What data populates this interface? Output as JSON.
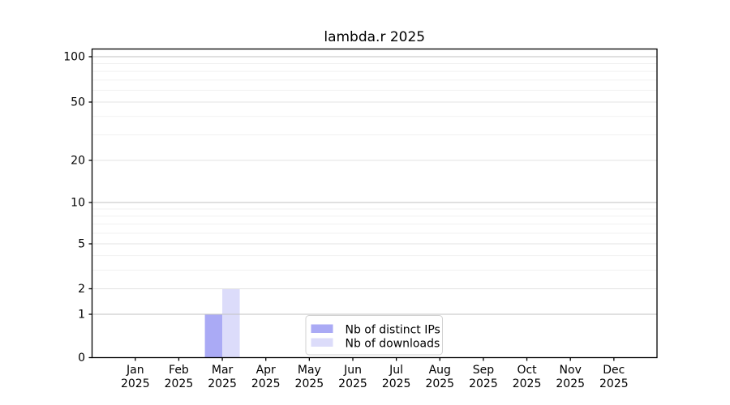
{
  "figure": {
    "background": "#ffffff"
  },
  "chart_data": {
    "type": "bar",
    "title": "lambda.r 2025",
    "categories": [
      "Jan 2025",
      "Feb 2025",
      "Mar 2025",
      "Apr 2025",
      "May 2025",
      "Jun 2025",
      "Jul 2025",
      "Aug 2025",
      "Sep 2025",
      "Oct 2025",
      "Nov 2025",
      "Dec 2025"
    ],
    "x_tick_line1": [
      "Jan",
      "Feb",
      "Mar",
      "Apr",
      "May",
      "Jun",
      "Jul",
      "Aug",
      "Sep",
      "Oct",
      "Nov",
      "Dec"
    ],
    "x_tick_line2": "2025",
    "series": [
      {
        "name": "Nb of distinct IPs",
        "color": "#aaaaf5",
        "values": [
          0,
          0,
          1,
          0,
          0,
          0,
          0,
          0,
          0,
          0,
          0,
          0
        ]
      },
      {
        "name": "Nb of downloads",
        "color": "#dcdcfa",
        "values": [
          0,
          0,
          2,
          0,
          0,
          0,
          0,
          0,
          0,
          0,
          0,
          0
        ]
      }
    ],
    "xlabel": "",
    "ylabel": "",
    "yscale": "log1p",
    "ylim": [
      0,
      113
    ],
    "y_major_ticks": [
      0,
      1,
      2,
      5,
      10,
      20,
      50,
      100
    ],
    "y_decade_gridlines": [
      1,
      10,
      100
    ],
    "y_labeled_gridlines": [
      2,
      5,
      20,
      50
    ],
    "y_minor_gridlines": [
      3,
      4,
      6,
      7,
      8,
      9,
      30,
      40,
      60,
      70,
      80,
      90
    ],
    "grid": true,
    "legend": {
      "position": "inside-bottom-center",
      "items": [
        "Nb of distinct IPs",
        "Nb of downloads"
      ]
    },
    "colors": {
      "spine": "#000000",
      "grid_decade": "#c2c2c2",
      "grid_labeled": "#e3e3e3",
      "grid_minor": "#f1f1f1",
      "text": "#000000",
      "legend_border": "#d2d2d2",
      "legend_bg": "#ffffff",
      "bar_distinct_ips": "#aaaaf5",
      "bar_downloads": "#dcdcfa"
    }
  }
}
